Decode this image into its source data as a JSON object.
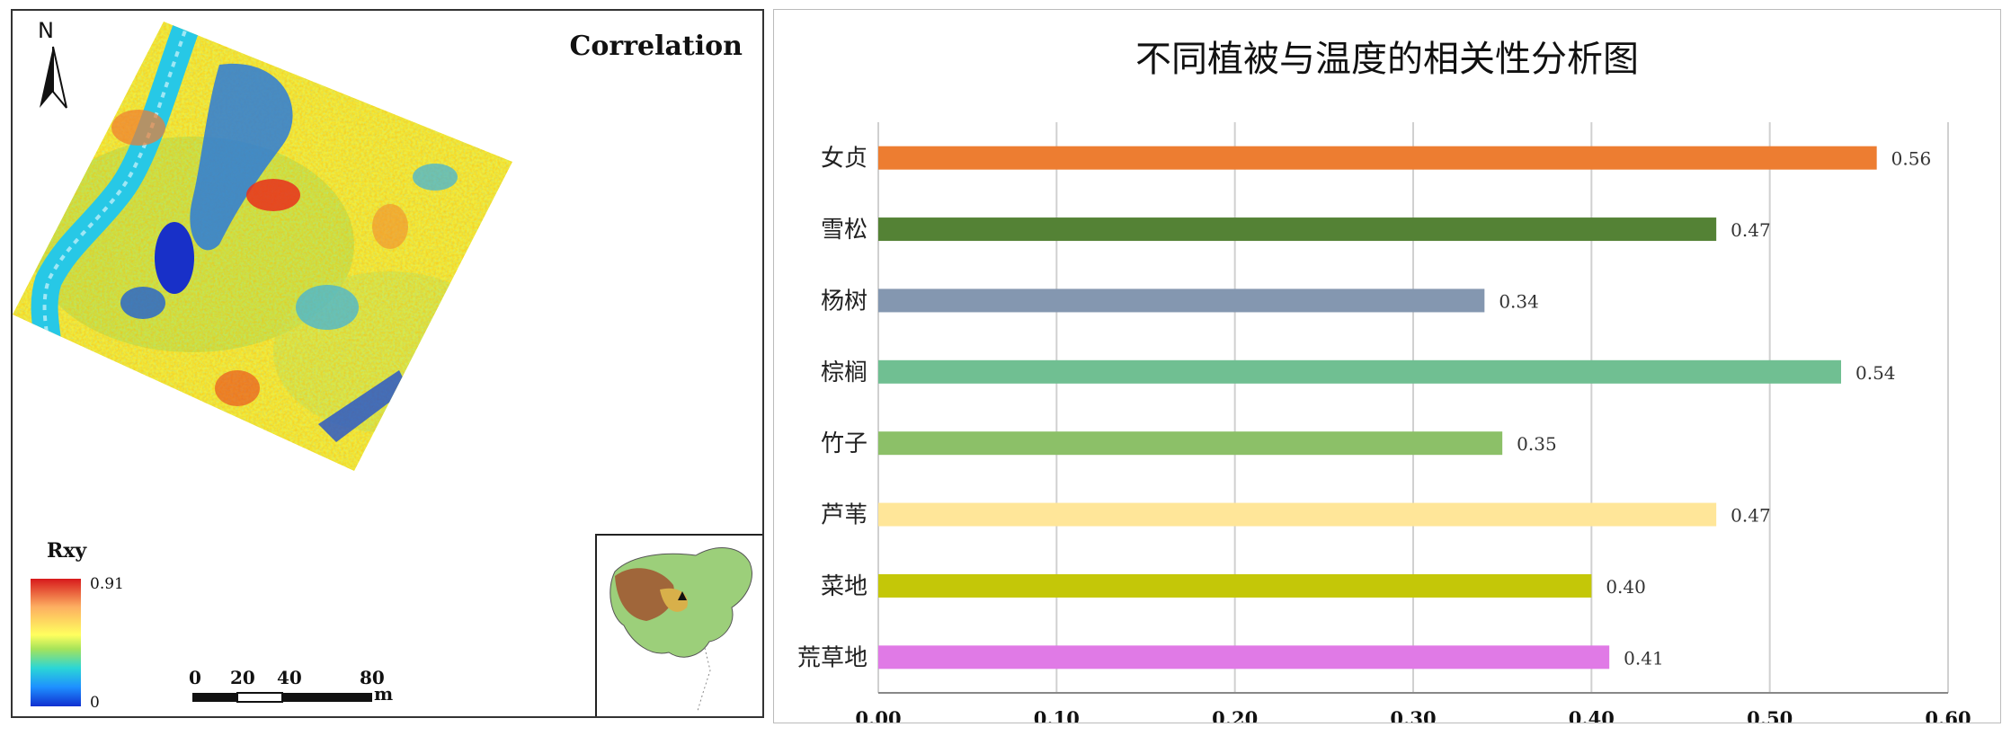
{
  "map": {
    "title": "Correlation",
    "north_label": "N",
    "legend": {
      "title": "Rxy",
      "max": "0.91",
      "min": "0"
    },
    "scalebar": {
      "ticks": [
        "0",
        "20",
        "40",
        "80"
      ],
      "unit": "m"
    }
  },
  "chart_data": {
    "type": "bar",
    "orientation": "horizontal",
    "title": "不同植被与温度的相关性分析图",
    "categories": [
      "女贞",
      "雪松",
      "杨树",
      "棕榈",
      "竹子",
      "芦苇",
      "菜地",
      "荒草地"
    ],
    "values": [
      0.56,
      0.47,
      0.34,
      0.54,
      0.35,
      0.47,
      0.4,
      0.41
    ],
    "value_labels": [
      "0.56",
      "0.47",
      "0.34",
      "0.54",
      "0.35",
      "0.47",
      "0.40",
      "0.41"
    ],
    "colors": [
      "#ed7d31",
      "#548235",
      "#8497b0",
      "#70bf92",
      "#8cc068",
      "#ffe699",
      "#c4c708",
      "#e07ae6"
    ],
    "x_ticks": [
      "0.00",
      "0.10",
      "0.20",
      "0.30",
      "0.40",
      "0.50",
      "0.60"
    ],
    "xlim": [
      0,
      0.6
    ],
    "grid": true,
    "xlabel": "",
    "ylabel": ""
  }
}
